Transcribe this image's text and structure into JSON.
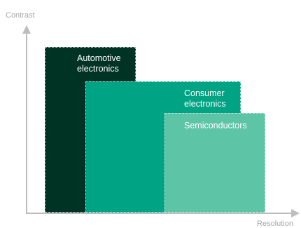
{
  "axes": {
    "y_label": "Contrast",
    "x_label": "Resolution"
  },
  "colors": {
    "axis": "#bdbdbd",
    "automotive": "#003324",
    "consumer": "#00a383",
    "semiconductors": "#5ec4a6"
  },
  "regions": {
    "automotive": {
      "label": "Automotive\nelectronics"
    },
    "consumer": {
      "label": "Consumer\nelectronics"
    },
    "semiconductors": {
      "label": "Semiconductors"
    }
  }
}
